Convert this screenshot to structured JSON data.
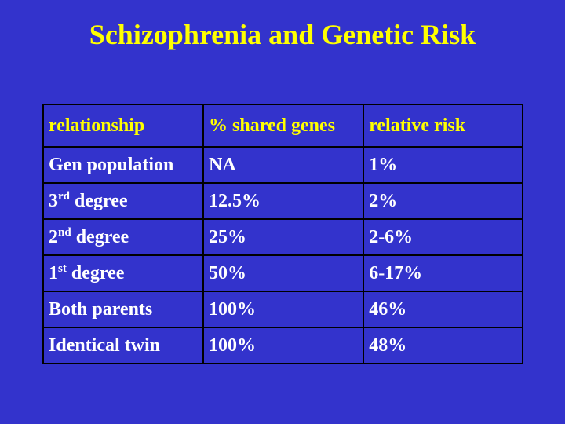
{
  "slide": {
    "title": "Schizophrenia and Genetic Risk"
  },
  "table": {
    "headers": [
      "relationship",
      "% shared genes",
      "relative risk"
    ],
    "rows": [
      {
        "relationship": "Gen population",
        "sup": "",
        "suffix": "",
        "shared": "NA",
        "risk": "1%"
      },
      {
        "relationship": "3",
        "sup": "rd",
        "suffix": " degree",
        "shared": "12.5%",
        "risk": "2%"
      },
      {
        "relationship": "2",
        "sup": "nd",
        "suffix": " degree",
        "shared": "25%",
        "risk": "2-6%"
      },
      {
        "relationship": "1",
        "sup": "st",
        "suffix": " degree",
        "shared": "50%",
        "risk": "6-17%"
      },
      {
        "relationship": "Both parents",
        "sup": "",
        "suffix": "",
        "shared": "100%",
        "risk": "46%"
      },
      {
        "relationship": "Identical twin",
        "sup": "",
        "suffix": "",
        "shared": "100%",
        "risk": "48%"
      }
    ]
  },
  "colors": {
    "background": "#3333cc",
    "title": "#ffff00",
    "header_text": "#ffff00",
    "body_text": "#ffffff",
    "grid": "#000000"
  }
}
